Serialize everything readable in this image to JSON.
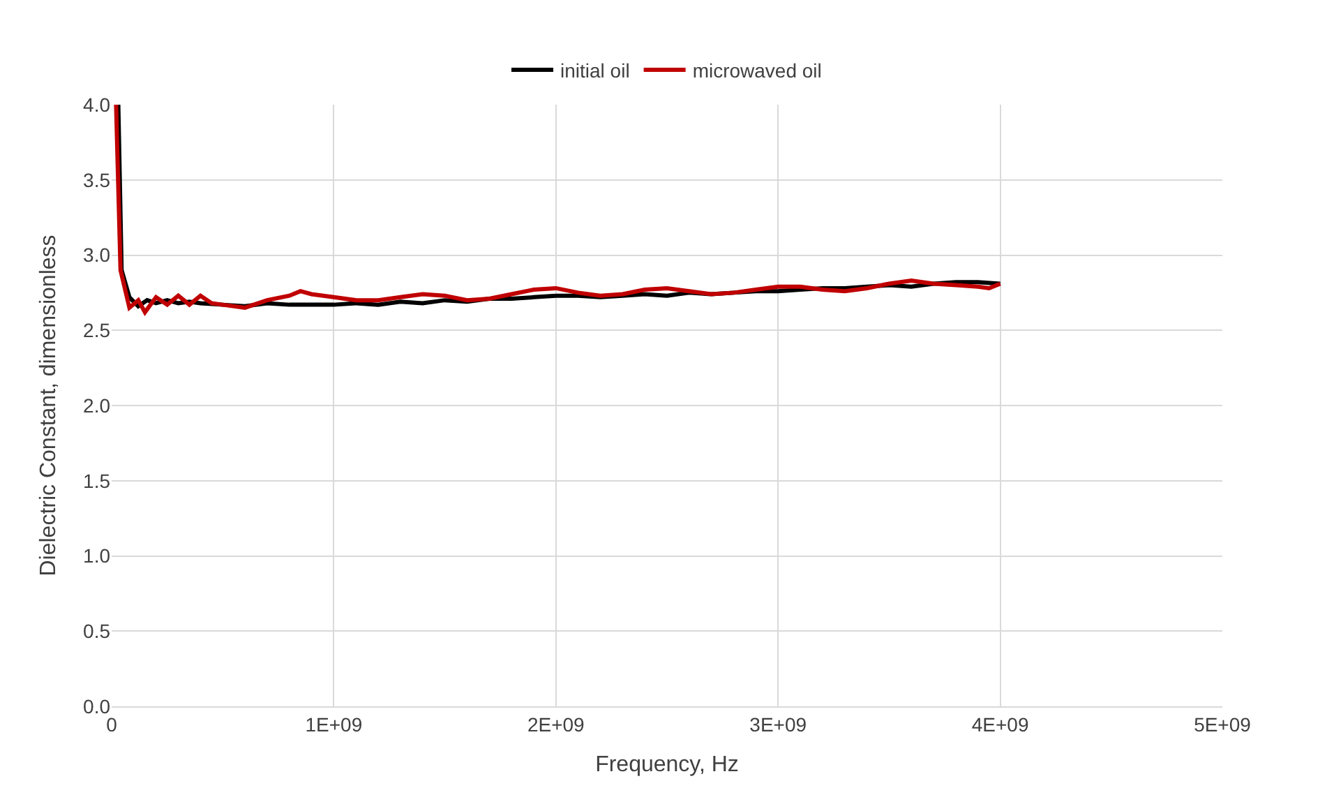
{
  "chart_data": {
    "type": "line",
    "xlabel": "Frequency, Hz",
    "ylabel": "Dielectric Constant, dimensionless",
    "xlim": [
      0,
      5000000000.0
    ],
    "xticks": [
      0,
      {
        "value": 1000000000.0,
        "label": "1E+09"
      },
      {
        "value": 2000000000.0,
        "label": "2E+09"
      },
      {
        "value": 3000000000.0,
        "label": "3E+09"
      },
      {
        "value": 4000000000.0,
        "label": "4E+09"
      },
      {
        "value": 5000000000.0,
        "label": "5E+09"
      }
    ],
    "ylim": [
      0,
      4
    ],
    "yticks": [
      {
        "value": 0,
        "label": "0.0"
      },
      {
        "value": 0.5,
        "label": "0.5"
      },
      {
        "value": 1,
        "label": "1.0"
      },
      {
        "value": 1.5,
        "label": "1.5"
      },
      {
        "value": 2,
        "label": "2.0"
      },
      {
        "value": 2.5,
        "label": "2.5"
      },
      {
        "value": 3,
        "label": "3.0"
      },
      {
        "value": 3.5,
        "label": "3.5"
      },
      {
        "value": 4,
        "label": "4.0"
      }
    ],
    "grid": true,
    "legend": "top",
    "marker": "none",
    "line_style": "solid",
    "series": [
      {
        "name": "initial oil",
        "color": "#000000",
        "x": [
          30000000.0,
          45000000.0,
          80000000.0,
          120000000.0,
          160000000.0,
          200000000.0,
          250000000.0,
          300000000.0,
          350000000.0,
          400000000.0,
          500000000.0,
          600000000.0,
          700000000.0,
          800000000.0,
          900000000.0,
          1000000000.0,
          1100000000.0,
          1200000000.0,
          1300000000.0,
          1400000000.0,
          1500000000.0,
          1600000000.0,
          1700000000.0,
          1800000000.0,
          1900000000.0,
          2000000000.0,
          2100000000.0,
          2200000000.0,
          2300000000.0,
          2400000000.0,
          2500000000.0,
          2600000000.0,
          2700000000.0,
          2800000000.0,
          2900000000.0,
          3000000000.0,
          3100000000.0,
          3200000000.0,
          3300000000.0,
          3400000000.0,
          3500000000.0,
          3600000000.0,
          3700000000.0,
          3800000000.0,
          3900000000.0,
          4000000000.0
        ],
        "values": [
          4.0,
          2.9,
          2.72,
          2.66,
          2.7,
          2.68,
          2.7,
          2.68,
          2.69,
          2.68,
          2.67,
          2.66,
          2.68,
          2.67,
          2.67,
          2.67,
          2.68,
          2.67,
          2.69,
          2.68,
          2.7,
          2.69,
          2.71,
          2.71,
          2.72,
          2.73,
          2.73,
          2.72,
          2.73,
          2.74,
          2.73,
          2.75,
          2.74,
          2.75,
          2.76,
          2.76,
          2.77,
          2.78,
          2.78,
          2.79,
          2.8,
          2.79,
          2.81,
          2.82,
          2.82,
          2.81
        ]
      },
      {
        "name": "microwaved oil",
        "color": "#c00000",
        "x": [
          20000000.0,
          40000000.0,
          80000000.0,
          120000000.0,
          150000000.0,
          200000000.0,
          250000000.0,
          300000000.0,
          350000000.0,
          400000000.0,
          450000000.0,
          500000000.0,
          600000000.0,
          700000000.0,
          800000000.0,
          850000000.0,
          900000000.0,
          1000000000.0,
          1100000000.0,
          1200000000.0,
          1300000000.0,
          1400000000.0,
          1500000000.0,
          1600000000.0,
          1700000000.0,
          1800000000.0,
          1900000000.0,
          2000000000.0,
          2100000000.0,
          2200000000.0,
          2300000000.0,
          2400000000.0,
          2500000000.0,
          2600000000.0,
          2700000000.0,
          2800000000.0,
          2900000000.0,
          3000000000.0,
          3100000000.0,
          3200000000.0,
          3300000000.0,
          3400000000.0,
          3500000000.0,
          3600000000.0,
          3700000000.0,
          3800000000.0,
          3900000000.0,
          3950000000.0,
          4000000000.0
        ],
        "values": [
          4.0,
          2.9,
          2.65,
          2.7,
          2.62,
          2.72,
          2.67,
          2.73,
          2.67,
          2.73,
          2.68,
          2.67,
          2.65,
          2.7,
          2.73,
          2.76,
          2.74,
          2.72,
          2.7,
          2.7,
          2.72,
          2.74,
          2.73,
          2.7,
          2.71,
          2.74,
          2.77,
          2.78,
          2.75,
          2.73,
          2.74,
          2.77,
          2.78,
          2.76,
          2.74,
          2.75,
          2.77,
          2.79,
          2.79,
          2.77,
          2.76,
          2.78,
          2.81,
          2.83,
          2.81,
          2.8,
          2.79,
          2.78,
          2.81
        ]
      }
    ]
  }
}
